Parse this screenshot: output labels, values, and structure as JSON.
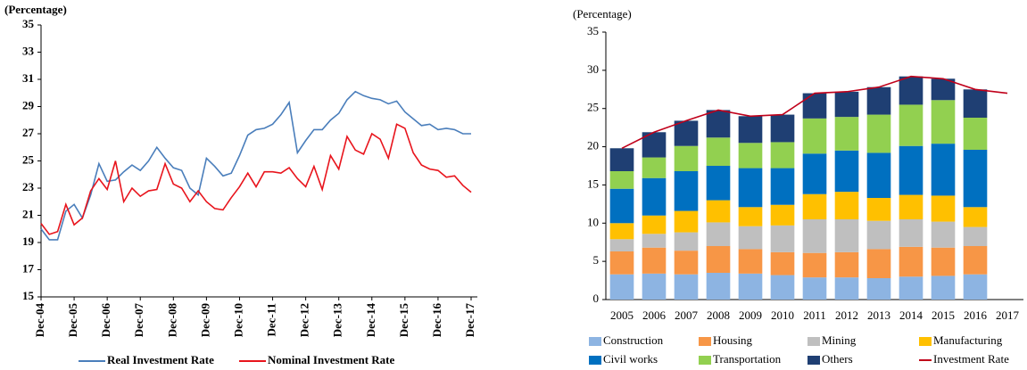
{
  "chart_data": [
    {
      "type": "line",
      "ylabel": "(Percentage)",
      "categories": [
        "Dec-04",
        null,
        null,
        null,
        "Dec-05",
        null,
        null,
        null,
        "Dec-06",
        null,
        null,
        null,
        "Dec-07",
        null,
        null,
        null,
        "Dec-08",
        null,
        null,
        null,
        "Dec-09",
        null,
        null,
        null,
        "Dec-10",
        null,
        null,
        null,
        "Dec-11",
        null,
        null,
        null,
        "Dec-12",
        null,
        null,
        null,
        "Dec-13",
        null,
        null,
        null,
        "Dec-14",
        null,
        null,
        null,
        "Dec-15",
        null,
        null,
        null,
        "Dec-16",
        null,
        null,
        null,
        "Dec-17"
      ],
      "series": [
        {
          "name": "Real Investment Rate",
          "color": "#4a7ebb",
          "values": [
            20.0,
            19.2,
            19.2,
            21.3,
            21.8,
            20.8,
            22.5,
            24.8,
            23.5,
            23.6,
            24.2,
            24.7,
            24.3,
            25.0,
            26.0,
            25.2,
            24.5,
            24.3,
            23.0,
            22.5,
            25.2,
            24.6,
            23.9,
            24.1,
            25.4,
            26.9,
            27.3,
            27.4,
            27.7,
            28.4,
            29.3,
            25.6,
            26.5,
            27.3,
            27.3,
            28.0,
            28.5,
            29.5,
            30.1,
            29.8,
            29.6,
            29.5,
            29.2,
            29.4,
            28.6,
            28.1,
            27.6,
            27.7,
            27.3,
            27.4,
            27.3,
            27.0,
            27.0
          ]
        },
        {
          "name": "Nominal Investment Rate",
          "color": "#e8141c",
          "values": [
            20.4,
            19.6,
            19.8,
            21.8,
            20.3,
            20.8,
            22.8,
            23.7,
            22.9,
            25.0,
            22.0,
            23.0,
            22.4,
            22.8,
            22.9,
            24.8,
            23.3,
            23.0,
            22.0,
            22.8,
            22.0,
            21.5,
            21.4,
            22.3,
            23.1,
            24.1,
            23.1,
            24.2,
            24.2,
            24.1,
            24.5,
            23.7,
            23.1,
            24.6,
            22.9,
            25.4,
            24.4,
            26.8,
            25.8,
            25.5,
            27.0,
            26.6,
            25.2,
            27.7,
            27.4,
            25.6,
            24.7,
            24.4,
            24.3,
            23.8,
            23.9,
            23.2,
            22.7
          ]
        }
      ],
      "ylim": [
        15,
        35
      ],
      "yticks": [
        15,
        17,
        19,
        21,
        23,
        25,
        27,
        29,
        31,
        33,
        35
      ]
    },
    {
      "type": "bar",
      "stacked": true,
      "ylabel": "(Percentage)",
      "categories": [
        "2005",
        "2006",
        "2007",
        "2008",
        "2009",
        "2010",
        "2011",
        "2012",
        "2013",
        "2014",
        "2015",
        "2016",
        "2017"
      ],
      "series": [
        {
          "name": "Construction",
          "color": "#8db4e2",
          "values": [
            3.3,
            3.4,
            3.3,
            3.5,
            3.4,
            3.2,
            2.9,
            2.9,
            2.8,
            3.0,
            3.1,
            3.3,
            null
          ]
        },
        {
          "name": "Housing",
          "color": "#f79646",
          "values": [
            3.0,
            3.4,
            3.1,
            3.5,
            3.2,
            3.0,
            3.2,
            3.3,
            3.8,
            3.9,
            3.7,
            3.7,
            null
          ]
        },
        {
          "name": "Mining",
          "color": "#bfbfbf",
          "values": [
            1.6,
            1.8,
            2.4,
            3.1,
            3.0,
            3.5,
            4.4,
            4.3,
            3.7,
            3.6,
            3.4,
            2.5,
            null
          ]
        },
        {
          "name": "Manufacturing",
          "color": "#ffc000",
          "values": [
            2.1,
            2.4,
            2.8,
            2.9,
            2.5,
            2.7,
            3.3,
            3.6,
            3.0,
            3.2,
            3.4,
            2.6,
            null
          ]
        },
        {
          "name": "Civil works",
          "color": "#0070c0",
          "values": [
            4.5,
            4.9,
            5.2,
            4.5,
            5.1,
            4.8,
            5.3,
            5.4,
            5.9,
            6.4,
            6.8,
            7.5,
            null
          ]
        },
        {
          "name": "Transportation",
          "color": "#92d050",
          "values": [
            2.3,
            2.7,
            3.3,
            3.7,
            3.3,
            3.4,
            4.6,
            4.4,
            5.0,
            5.4,
            5.7,
            4.2,
            null
          ]
        },
        {
          "name": "Others",
          "color": "#1f3f73",
          "values": [
            3.0,
            3.3,
            3.3,
            3.6,
            3.5,
            3.6,
            3.3,
            3.3,
            3.6,
            3.7,
            2.8,
            3.7,
            null
          ]
        },
        {
          "name": "Investment Rate",
          "type": "line",
          "color": "#c0001a",
          "values": [
            19.8,
            21.9,
            23.4,
            24.8,
            24.0,
            24.2,
            27.0,
            27.2,
            27.8,
            29.2,
            28.9,
            27.5,
            27.0
          ]
        }
      ],
      "ylim": [
        0,
        35
      ],
      "yticks": [
        0,
        5,
        10,
        15,
        20,
        25,
        30,
        35
      ]
    }
  ]
}
